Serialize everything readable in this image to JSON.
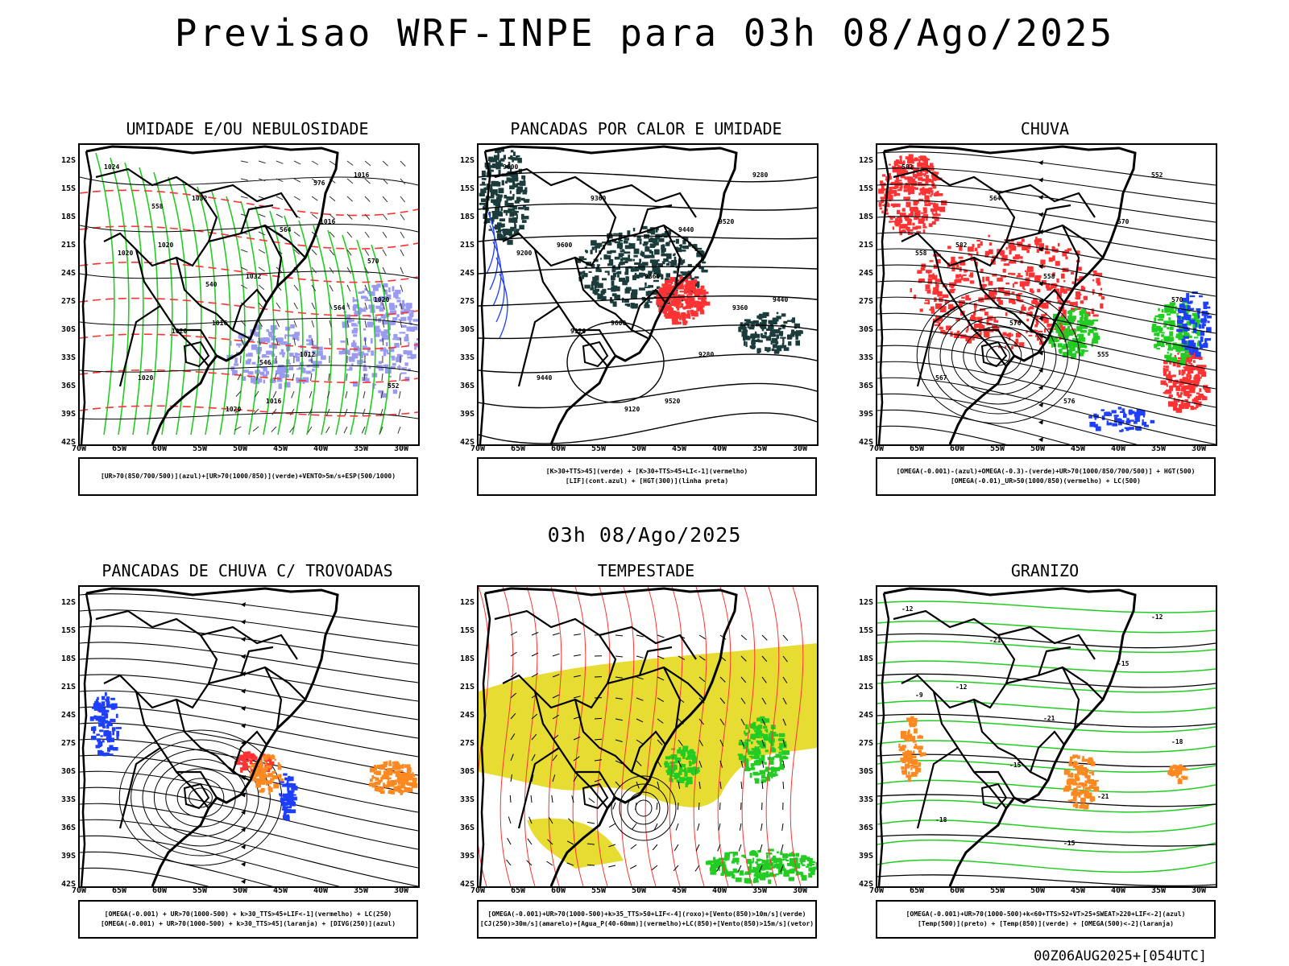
{
  "main_title": "Previsao WRF-INPE  para 03h 08/Ago/2025",
  "mid_title": "03h 08/Ago/2025",
  "footer": "00Z06AUG2025+[054UTC]",
  "axes": {
    "lat_labels": [
      "12S",
      "15S",
      "18S",
      "21S",
      "24S",
      "27S",
      "30S",
      "33S",
      "36S",
      "39S",
      "42S"
    ],
    "lon_labels": [
      "70W",
      "65W",
      "60W",
      "55W",
      "50W",
      "45W",
      "40W",
      "35W",
      "30W"
    ]
  },
  "panels": [
    {
      "title": "UMIDADE E/OU NEBULOSIDADE",
      "legend": [
        "[UR>70(850/700/500)](azul)+[UR>70(1000/850)](verde)+VENTO>5m/s+ESP(500/1000)"
      ],
      "contour_labels": [
        "1024",
        "1020",
        "1016",
        "1016",
        "1016",
        "1020",
        "1020",
        "1032",
        "1032",
        "1012",
        "1016",
        "1020",
        "1020",
        "1020",
        "564",
        "564",
        "552",
        "558",
        "540",
        "546",
        "576",
        "570"
      ]
    },
    {
      "title": "PANCADAS POR CALOR E UMIDADE",
      "legend": [
        "[K>30+TTS>45](verde) + [K>30+TTS>45+LI<-1](vermelho)",
        "[LIF](cont.azul) + [HGT(300)](linha preta)"
      ],
      "contour_labels": [
        "9600",
        "9600",
        "9600",
        "9520",
        "9520",
        "9440",
        "9440",
        "9360",
        "9360",
        "9280",
        "9280",
        "9200",
        "9120",
        "9120",
        "9440",
        "9360"
      ]
    },
    {
      "title": "CHUVA",
      "legend": [
        "[OMEGA(-0.001)-(azul)+OMEGA(-0.3)-(verde)+UR>70(1000/850/700/500)] + HGT(500)",
        "[OMEGA(-0.01)_UR>50(1000/850)(vermelho) + LC(500)"
      ],
      "contour_labels": [
        "582",
        "582",
        "576",
        "576",
        "570",
        "570",
        "567",
        "564",
        "558",
        "555",
        "552",
        "558"
      ]
    },
    {
      "title": "PANCADAS DE CHUVA C/ TROVOADAS",
      "legend": [
        "[OMEGA(-0.001) + UR>70(1000-500) + k>30_TTS>45+LIF<-1](vermelho) + LC(250)",
        "[OMEGA(-0.001) + UR>70(1000-500) + k>30_TTS>45](laranja) + [DIVG(250)](azul)"
      ],
      "contour_labels": []
    },
    {
      "title": "TEMPESTADE",
      "legend": [
        "[OMEGA(-0.001)+UR>70(1000-500)+k>35_TTS>50+LIF<-4](roxo)+[Vento(850)>10m/s](verde)",
        "[CJ(250)>30m/s](amarelo)+[Agua_P(40-60mm)](vermelho)+LC(850)+[Vento(850)>15m/s](vetor)"
      ],
      "contour_labels": []
    },
    {
      "title": "GRANIZO",
      "legend": [
        "[OMEGA(-0.001)+UR>70(1000-500)+k<60+TTS>52+VT>25+SWEAT>220+LIF<-2](azul)",
        "[Temp(500)](preto) + [Temp(850)](verde) + [OMEGA(500)<-2](laranja)"
      ],
      "contour_labels": [
        "-12",
        "-12",
        "-15",
        "-15",
        "-15",
        "-18",
        "-18",
        "-21",
        "-21",
        "-21",
        "-12",
        "-9"
      ]
    }
  ],
  "colors": {
    "green": "#22cc22",
    "blue": "#1f3fff",
    "red": "#ff3333",
    "orange": "#ff8820",
    "yellow": "#e6dc32",
    "lav": "#9a9af0",
    "dark": "#1c3c3c"
  }
}
